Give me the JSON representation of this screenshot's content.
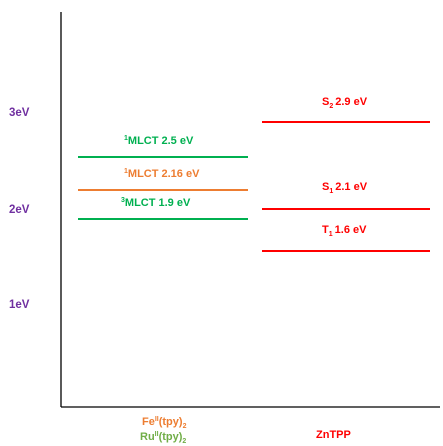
{
  "colors": {
    "axis": "#000000",
    "energy_labels": "#7030a0",
    "mlct_green": "#00b050",
    "mlct_orange": "#ed7d31",
    "zntpp_red": "#ff0000"
  },
  "y_axis": {
    "ticks": [
      {
        "label": "3eV",
        "value": 3
      },
      {
        "label": "2eV",
        "value": 2
      },
      {
        "label": "1eV",
        "value": 1
      }
    ]
  },
  "columns": [
    {
      "label_top": "Fe",
      "label_top_sup": "II",
      "label_top_tail": "(tpy)",
      "label_top_sub": "2",
      "label_bottom": "Ru",
      "label_bottom_sup": "II",
      "label_bottom_tail": "(tpy)",
      "label_bottom_sub": "2"
    },
    {
      "label": "ZnTPP"
    }
  ],
  "levels": {
    "mlct_1_ru": {
      "sup": "1",
      "text": "MLCT 2.5 eV",
      "value": 2.5,
      "color": "#00b050"
    },
    "mlct_1_fe": {
      "sup": "1",
      "text": "MLCT 2.16 eV",
      "value": 2.16,
      "color": "#ed7d31"
    },
    "mlct_3_ru": {
      "sup": "3",
      "text": "MLCT 1.9 eV",
      "value": 1.9,
      "color": "#00b050"
    },
    "s2": {
      "main": "S",
      "sub": "2",
      "text": "2.9 eV",
      "value": 2.9,
      "color": "#ff0000"
    },
    "s1": {
      "main": "S",
      "sub": "1",
      "text": "2.1 eV",
      "value": 2.1,
      "color": "#ff0000"
    },
    "t1": {
      "main": "T",
      "sub": "1",
      "text": "1.6 eV",
      "value": 1.6,
      "color": "#ff0000"
    }
  }
}
